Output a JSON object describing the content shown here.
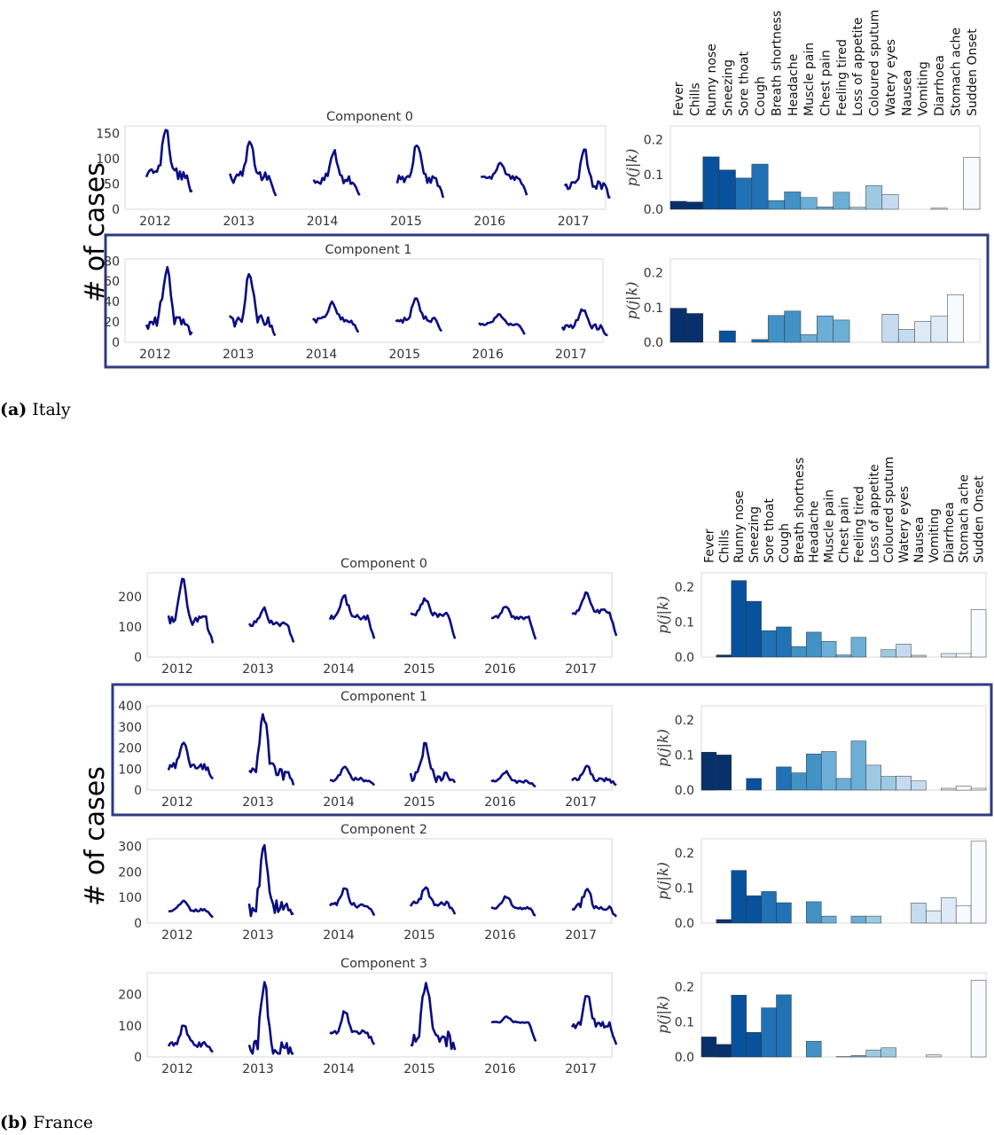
{
  "symptoms": [
    "Fever",
    "Chills",
    "Runny nose",
    "Sneezing",
    "Sore thoat",
    "Cough",
    "Breath shortness",
    "Headache",
    "Muscle pain",
    "Chest pain",
    "Feeling tired",
    "Loss of appetite",
    "Coloured sputum",
    "Watery eyes",
    "Nausea",
    "Vomiting",
    "Diarrhoea",
    "Stomach ache",
    "Sudden Onset"
  ],
  "years": [
    "2012",
    "2013",
    "2014",
    "2015",
    "2016",
    "2017"
  ],
  "bar_ylabel": "p(j|k)",
  "panels": [
    {
      "id": "italy",
      "caption_tag": "(a)",
      "caption_text": "Italy",
      "ylabel": "# of cases",
      "highlighted_component": 1,
      "components": [
        {
          "title": "Component 0",
          "ylim": [
            0,
            165
          ],
          "yticks": [
            0,
            50,
            100,
            150
          ],
          "season_peaks": [
            160,
            140,
            117,
            126,
            92,
            118
          ],
          "season_base": [
            70,
            62,
            58,
            58,
            62,
            48
          ],
          "bar_ylim": [
            0,
            0.24
          ],
          "bar_yticks": [
            "0.0",
            "0.1",
            "0.2"
          ],
          "probabilities": [
            0.023,
            0.021,
            0.151,
            0.113,
            0.09,
            0.13,
            0.025,
            0.05,
            0.034,
            0.007,
            0.049,
            0.006,
            0.068,
            0.043,
            0.0,
            0.0,
            0.003,
            0.0,
            0.149
          ]
        },
        {
          "title": "Component 1",
          "ylim": [
            0,
            82
          ],
          "yticks": [
            0,
            20,
            40,
            60,
            80
          ],
          "season_peaks": [
            74,
            67,
            40,
            43,
            28,
            34
          ],
          "season_base": [
            20,
            20,
            22,
            22,
            18,
            15
          ],
          "bar_ylim": [
            0,
            0.24
          ],
          "bar_yticks": [
            "0.0",
            "0.1",
            "0.2"
          ],
          "probabilities": [
            0.098,
            0.083,
            0.0,
            0.033,
            0.0,
            0.008,
            0.077,
            0.09,
            0.022,
            0.076,
            0.064,
            0.0,
            0.0,
            0.081,
            0.037,
            0.06,
            0.075,
            0.137,
            0.0
          ]
        }
      ]
    },
    {
      "id": "france",
      "caption_tag": "(b)",
      "caption_text": "France",
      "ylabel": "# of cases",
      "highlighted_component": 1,
      "components": [
        {
          "title": "Component 0",
          "ylim": [
            0,
            280
          ],
          "yticks": [
            0,
            100,
            200
          ],
          "season_peaks": [
            260,
            165,
            205,
            195,
            170,
            215
          ],
          "season_base": [
            120,
            110,
            130,
            140,
            130,
            150
          ],
          "bar_ylim": [
            0,
            0.24
          ],
          "bar_yticks": [
            "0.0",
            "0.1",
            "0.2"
          ],
          "probabilities": [
            0.0,
            0.006,
            0.218,
            0.159,
            0.075,
            0.086,
            0.03,
            0.071,
            0.045,
            0.006,
            0.056,
            0.0,
            0.021,
            0.037,
            0.005,
            0.0,
            0.01,
            0.01,
            0.135
          ]
        },
        {
          "title": "Component 1",
          "ylim": [
            0,
            400
          ],
          "yticks": [
            0,
            100,
            200,
            300,
            400
          ],
          "season_peaks": [
            225,
            360,
            115,
            225,
            90,
            115
          ],
          "season_base": [
            110,
            80,
            50,
            60,
            40,
            50
          ],
          "bar_ylim": [
            0,
            0.24
          ],
          "bar_yticks": [
            "0.0",
            "0.1",
            "0.2"
          ],
          "probabilities": [
            0.108,
            0.1,
            0.0,
            0.033,
            0.0,
            0.066,
            0.049,
            0.103,
            0.11,
            0.033,
            0.14,
            0.071,
            0.039,
            0.04,
            0.026,
            0.0,
            0.005,
            0.012,
            0.005
          ]
        },
        {
          "title": "Component 2",
          "ylim": [
            0,
            330
          ],
          "yticks": [
            0,
            100,
            200,
            300
          ],
          "season_peaks": [
            90,
            305,
            135,
            140,
            105,
            140
          ],
          "season_base": [
            50,
            60,
            70,
            75,
            60,
            60
          ],
          "bar_ylim": [
            0,
            0.24
          ],
          "bar_yticks": [
            "0.0",
            "0.1",
            "0.2"
          ],
          "probabilities": [
            0.0,
            0.01,
            0.15,
            0.078,
            0.09,
            0.058,
            0.0,
            0.061,
            0.02,
            0.0,
            0.02,
            0.02,
            0.0,
            0.0,
            0.057,
            0.035,
            0.072,
            0.05,
            0.233
          ]
        },
        {
          "title": "Component 3",
          "ylim": [
            0,
            270
          ],
          "yticks": [
            0,
            100,
            200
          ],
          "season_peaks": [
            100,
            240,
            150,
            250,
            130,
            195
          ],
          "season_base": [
            40,
            20,
            80,
            60,
            110,
            100
          ],
          "bar_ylim": [
            0,
            0.24
          ],
          "bar_yticks": [
            "0.0",
            "0.1",
            "0.2"
          ],
          "probabilities": [
            0.057,
            0.036,
            0.176,
            0.07,
            0.14,
            0.177,
            0.0,
            0.045,
            0.0,
            0.001,
            0.004,
            0.02,
            0.026,
            0.0,
            0.0,
            0.006,
            0.0,
            0.0,
            0.218
          ]
        }
      ]
    }
  ],
  "colors": {
    "line": "#0b0d80",
    "highlight_box": "#2f3a80",
    "frame": "#d9d9d9",
    "bar_edge": "#333333",
    "bar_scale": [
      "#08306b",
      "#08519c",
      "#2171b5",
      "#4292c6",
      "#6baed6",
      "#9ecae1",
      "#c6dbef",
      "#deebf7",
      "#f7fbff"
    ]
  }
}
